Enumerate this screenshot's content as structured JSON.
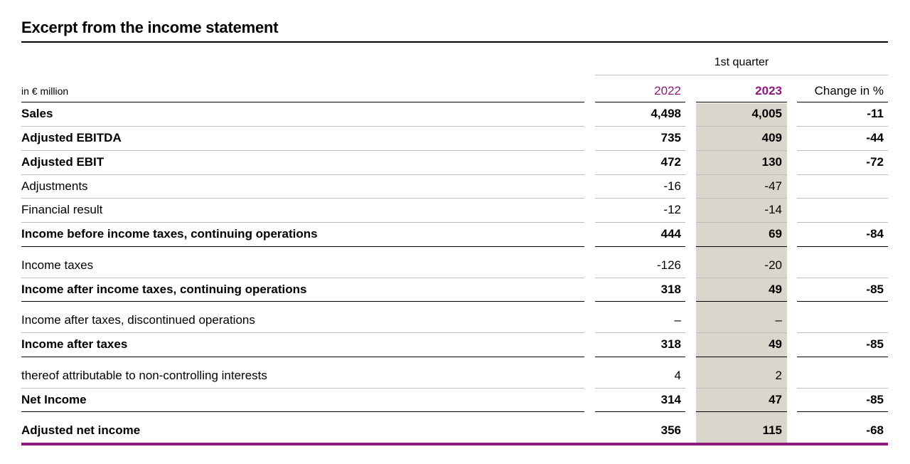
{
  "title": "Excerpt from the income statement",
  "colors": {
    "accent": "#8e1a7b",
    "shade": "#d9d6cc",
    "rule_light": "#bdbdbd",
    "rule_dark": "#000000"
  },
  "header": {
    "period_label": "1st quarter",
    "unit_label": "in € million",
    "col_2022": "2022",
    "col_2023": "2023",
    "col_change": "Change in %"
  },
  "rows": [
    {
      "label": "Sales",
      "v2022": "4,498",
      "v2023": "4,005",
      "change": "-11",
      "bold": true
    },
    {
      "label": "Adjusted EBITDA",
      "v2022": "735",
      "v2023": "409",
      "change": "-44",
      "bold": true
    },
    {
      "label": "Adjusted EBIT",
      "v2022": "472",
      "v2023": "130",
      "change": "-72",
      "bold": true
    },
    {
      "label": "Adjustments",
      "v2022": "-16",
      "v2023": "-47",
      "change": "",
      "bold": false
    },
    {
      "label": "Financial result",
      "v2022": "-12",
      "v2023": "-14",
      "change": "",
      "bold": false
    },
    {
      "label": "Income before income taxes, continuing operations",
      "v2022": "444",
      "v2023": "69",
      "change": "-84",
      "bold": true
    },
    {
      "label": "Income taxes",
      "v2022": "-126",
      "v2023": "-20",
      "change": "",
      "bold": false
    },
    {
      "label": "Income after income taxes, continuing operations",
      "v2022": "318",
      "v2023": "49",
      "change": "-85",
      "bold": true
    },
    {
      "label": "Income after taxes, discontinued operations",
      "v2022": "–",
      "v2023": "–",
      "change": "",
      "bold": false
    },
    {
      "label": "Income after taxes",
      "v2022": "318",
      "v2023": "49",
      "change": "-85",
      "bold": true
    },
    {
      "label": "thereof attributable to non-controlling interests",
      "v2022": "4",
      "v2023": "2",
      "change": "",
      "bold": false
    },
    {
      "label": "Net Income",
      "v2022": "314",
      "v2023": "47",
      "change": "-85",
      "bold": true
    },
    {
      "label": "Adjusted net income",
      "v2022": "356",
      "v2023": "115",
      "change": "-68",
      "bold": true
    }
  ]
}
